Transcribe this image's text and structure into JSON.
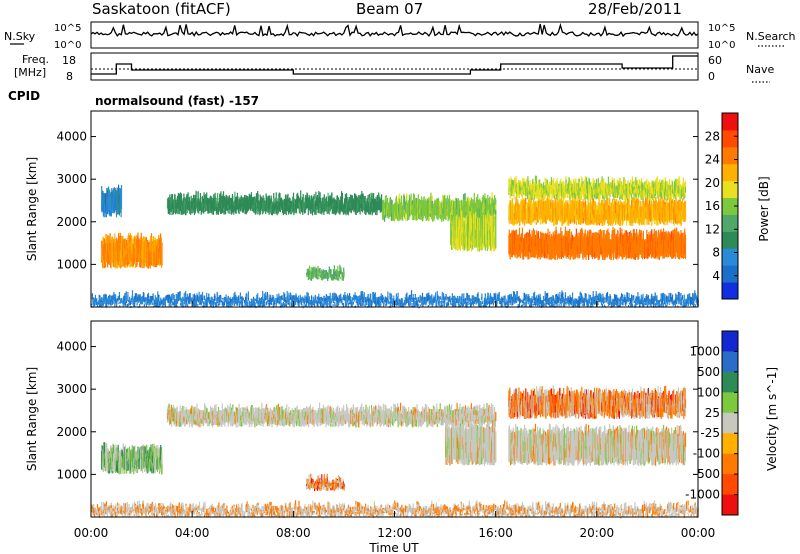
{
  "header": {
    "station": "Saskatoon (fitACF)",
    "beam": "Beam 07",
    "date": "28/Feb/2011"
  },
  "sky_panel": {
    "left_label": "N.Sky",
    "right_label": "N.Search",
    "top_tick": "10^5",
    "bottom_tick": "10^0"
  },
  "freq_panel": {
    "left_label": "Freq.",
    "left_unit": "[MHz]",
    "right_label": "Nave",
    "left_ticks": [
      "18",
      "8"
    ],
    "right_ticks": [
      "60",
      "0"
    ]
  },
  "cpid": {
    "label": "CPID",
    "mode": "normalsound (fast) -157"
  },
  "chart_data": [
    {
      "type": "heatmap",
      "title": "",
      "ylabel": "Slant Range [km]",
      "xlabel": "",
      "ylim": [
        0,
        4600
      ],
      "yticks": [
        "1000",
        "2000",
        "3000",
        "4000"
      ],
      "colorbar": {
        "label": "Power [dB]",
        "range": [
          0,
          32
        ],
        "ticks": [
          "4",
          "8",
          "12",
          "16",
          "20",
          "24",
          "28"
        ],
        "colors": [
          "#1030e0",
          "#1a6fc8",
          "#2a8ad8",
          "#2e8b57",
          "#4fa86a",
          "#7cc83e",
          "#e8e020",
          "#ffb000",
          "#ff7a00",
          "#ff4a00",
          "#ee1010"
        ]
      },
      "echo_bands": [
        {
          "t0": 0.4,
          "t1": 2.8,
          "r0": 1000,
          "r1": 1600,
          "v": 24
        },
        {
          "t0": 0.4,
          "t1": 1.2,
          "r0": 2200,
          "r1": 2700,
          "v": 6
        },
        {
          "t0": 3.0,
          "t1": 11.5,
          "r0": 2250,
          "r1": 2550,
          "v": 10
        },
        {
          "t0": 11.5,
          "t1": 16.0,
          "r0": 2100,
          "r1": 2500,
          "v": 16
        },
        {
          "t0": 14.2,
          "t1": 16.0,
          "r0": 1400,
          "r1": 2100,
          "v": 18
        },
        {
          "t0": 16.5,
          "t1": 23.5,
          "r0": 2000,
          "r1": 2450,
          "v": 22
        },
        {
          "t0": 16.5,
          "t1": 23.5,
          "r0": 1200,
          "r1": 1700,
          "v": 26
        },
        {
          "t0": 16.5,
          "t1": 23.5,
          "r0": 2600,
          "r1": 2900,
          "v": 18
        },
        {
          "t0": 8.5,
          "t1": 10.0,
          "r0": 700,
          "r1": 850,
          "v": 14
        },
        {
          "t0": 0.0,
          "t1": 24.0,
          "r0": 80,
          "r1": 200,
          "v": 5
        }
      ]
    },
    {
      "type": "heatmap",
      "title": "",
      "ylabel": "Slant Range [km]",
      "xlabel": "Time UT",
      "ylim": [
        0,
        4600
      ],
      "yticks": [
        "1000",
        "2000",
        "3000",
        "4000"
      ],
      "xticks": [
        "00:00",
        "04:00",
        "08:00",
        "12:00",
        "16:00",
        "20:00",
        "00:00"
      ],
      "colorbar": {
        "label": "Velocity [m s^-1]",
        "levels": [
          "1000",
          "500",
          "100",
          "25",
          "-25",
          "-100",
          "-500",
          "-1000"
        ],
        "colors": [
          "#1428d2",
          "#2a6dc8",
          "#2e8b57",
          "#7cc83e",
          "#c8c8c0",
          "#ffb000",
          "#ff7a00",
          "#ff4a00",
          "#ee1010"
        ]
      },
      "echo_bands": [
        {
          "t0": 0.4,
          "t1": 2.8,
          "r0": 1100,
          "r1": 1600,
          "v": 2
        },
        {
          "t0": 3.0,
          "t1": 16.0,
          "r0": 2200,
          "r1": 2500,
          "v": 4
        },
        {
          "t0": 14.0,
          "t1": 16.0,
          "r0": 1300,
          "r1": 2100,
          "v": 4
        },
        {
          "t0": 16.5,
          "t1": 23.5,
          "r0": 2400,
          "r1": 2900,
          "v": 6
        },
        {
          "t0": 16.5,
          "t1": 23.5,
          "r0": 1300,
          "r1": 2000,
          "v": 4
        },
        {
          "t0": 8.5,
          "t1": 10.0,
          "r0": 700,
          "r1": 850,
          "v": 6
        },
        {
          "t0": 0.0,
          "t1": 24.0,
          "r0": 80,
          "r1": 200,
          "v": 5
        }
      ]
    }
  ]
}
